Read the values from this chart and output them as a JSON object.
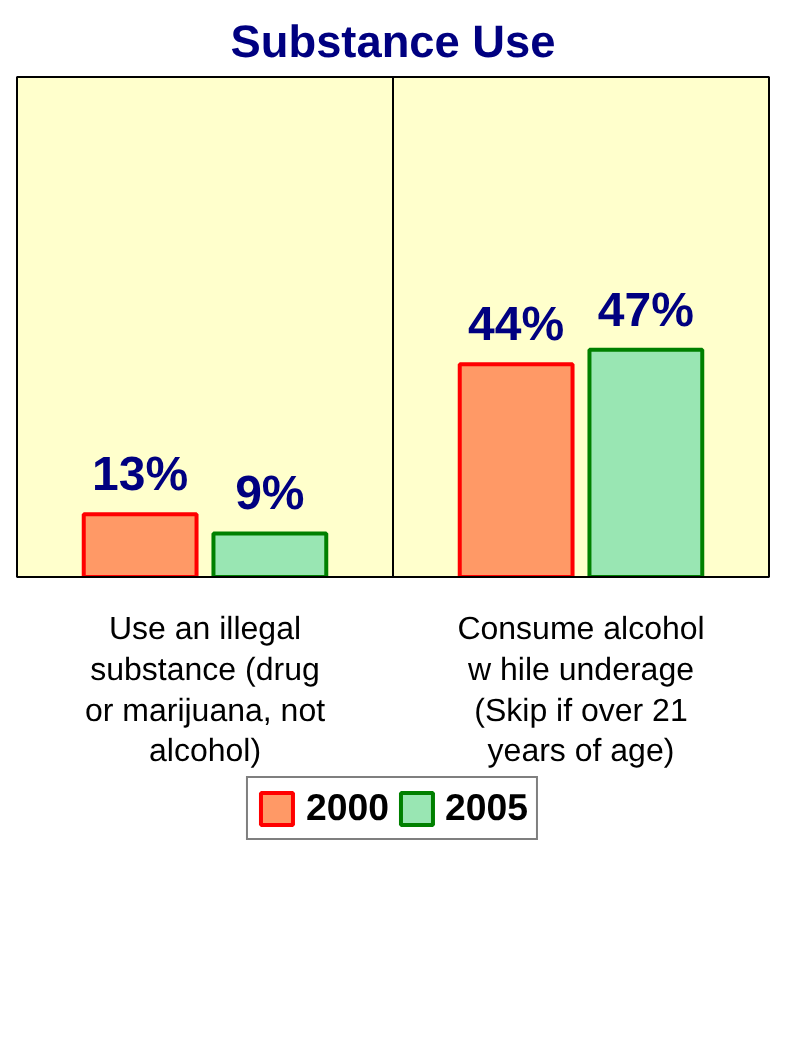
{
  "chart_data": {
    "type": "bar",
    "title": "Substance Use",
    "categories": [
      "Use an illegal\nsubstance (drug\nor marijuana, not\nalcohol)",
      "Consume alcohol\nw hile underage\n(Skip if over 21\nyears of age)"
    ],
    "series": [
      {
        "name": "2000",
        "color": "#ff9966",
        "values": [
          13,
          44
        ],
        "value_labels": [
          "13%",
          "44%"
        ]
      },
      {
        "name": "2005",
        "color": "#99e6b3",
        "values": [
          9,
          47
        ],
        "value_labels": [
          "9%",
          "47%"
        ]
      }
    ],
    "legend": "bottom",
    "grid": "x"
  }
}
